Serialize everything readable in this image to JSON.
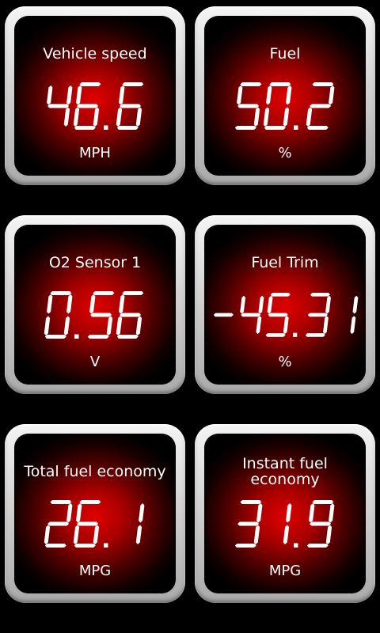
{
  "gauges": [
    {
      "label": "Vehicle speed",
      "value": "46.6",
      "unit": "MPH"
    },
    {
      "label": "Fuel",
      "value": "50.2",
      "unit": "%"
    },
    {
      "label": "O2 Sensor 1",
      "value": "0.56",
      "unit": "V"
    },
    {
      "label": "Fuel Trim",
      "value": "-45.31",
      "unit": "%"
    },
    {
      "label": "Total fuel economy",
      "value": "26.1",
      "unit": "MPG"
    },
    {
      "label": "Instant fuel economy",
      "value": "31.9",
      "unit": "MPG"
    }
  ],
  "colors": {
    "digit": "#ffffff",
    "face_center": "#e00000",
    "bezel": "#d2d2d2"
  }
}
